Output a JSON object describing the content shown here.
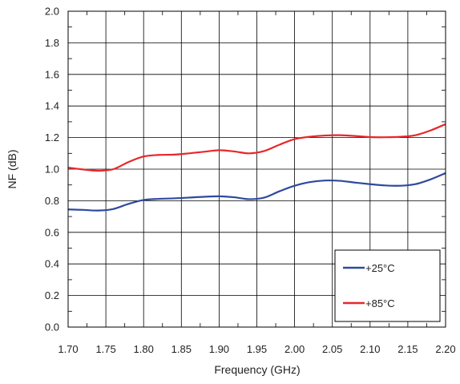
{
  "chart_data": {
    "type": "line",
    "title": "",
    "xlabel": "Frequency (GHz)",
    "ylabel": "NF (dB)",
    "xlim": [
      1.7,
      2.2
    ],
    "ylim": [
      0.0,
      2.0
    ],
    "x_ticks": [
      "1.70",
      "1.75",
      "1.80",
      "1.85",
      "1.90",
      "1.95",
      "2.00",
      "2.05",
      "2.10",
      "2.15",
      "2.20"
    ],
    "y_ticks": [
      "0.0",
      "0.2",
      "0.4",
      "0.6",
      "0.8",
      "1.0",
      "1.2",
      "1.4",
      "1.6",
      "1.8",
      "2.0"
    ],
    "grid": true,
    "legend_position": "bottom-right",
    "series": [
      {
        "name": "+25°C",
        "color": "#2e4a9e",
        "x": [
          1.7,
          1.72,
          1.74,
          1.76,
          1.78,
          1.8,
          1.82,
          1.84,
          1.86,
          1.88,
          1.9,
          1.92,
          1.94,
          1.96,
          1.98,
          2.0,
          2.02,
          2.04,
          2.06,
          2.08,
          2.1,
          2.12,
          2.14,
          2.16,
          2.18,
          2.2
        ],
        "y": [
          0.745,
          0.742,
          0.738,
          0.748,
          0.78,
          0.805,
          0.812,
          0.815,
          0.82,
          0.825,
          0.828,
          0.822,
          0.81,
          0.82,
          0.86,
          0.895,
          0.918,
          0.928,
          0.926,
          0.915,
          0.905,
          0.897,
          0.895,
          0.905,
          0.935,
          0.975
        ]
      },
      {
        "name": "+85°C",
        "color": "#e8272a",
        "x": [
          1.7,
          1.72,
          1.74,
          1.76,
          1.78,
          1.8,
          1.82,
          1.84,
          1.86,
          1.88,
          1.9,
          1.92,
          1.94,
          1.96,
          1.98,
          2.0,
          2.02,
          2.04,
          2.06,
          2.08,
          2.1,
          2.12,
          2.14,
          2.16,
          2.18,
          2.2
        ],
        "y": [
          1.01,
          0.998,
          0.99,
          1.0,
          1.045,
          1.08,
          1.09,
          1.092,
          1.1,
          1.11,
          1.12,
          1.112,
          1.1,
          1.115,
          1.155,
          1.19,
          1.205,
          1.213,
          1.215,
          1.21,
          1.203,
          1.202,
          1.205,
          1.215,
          1.245,
          1.285
        ]
      }
    ]
  }
}
